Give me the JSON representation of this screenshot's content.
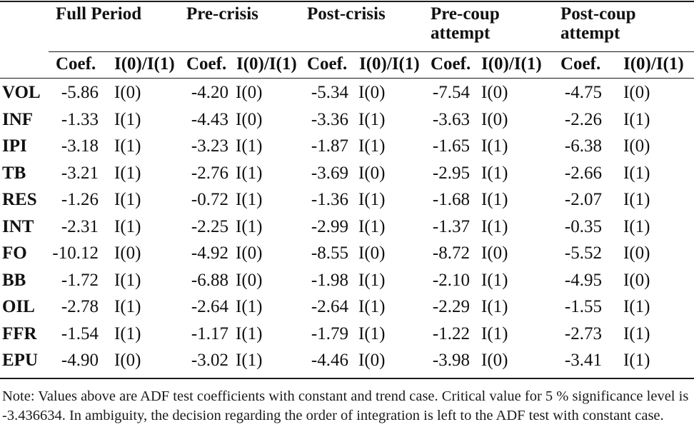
{
  "table": {
    "groups": [
      "Full Period",
      "Pre-crisis",
      "Post-crisis",
      "Pre-coup\nattempt",
      "Post-coup\nattempt"
    ],
    "sub_headers": [
      "Coef.",
      "I(0)/I(1)"
    ],
    "rows": [
      {
        "var": "VOL",
        "vals": [
          [
            "-5.86",
            "I(0)"
          ],
          [
            "-4.20",
            "I(0)"
          ],
          [
            "-5.34",
            "I(0)"
          ],
          [
            "-7.54",
            "I(0)"
          ],
          [
            "-4.75",
            "I(0)"
          ]
        ]
      },
      {
        "var": "INF",
        "vals": [
          [
            "-1.33",
            "I(1)"
          ],
          [
            "-4.43",
            "I(0)"
          ],
          [
            "-3.36",
            "I(1)"
          ],
          [
            "-3.63",
            "I(0)"
          ],
          [
            "-2.26",
            "I(1)"
          ]
        ]
      },
      {
        "var": "IPI",
        "vals": [
          [
            "-3.18",
            "I(1)"
          ],
          [
            "-3.23",
            "I(1)"
          ],
          [
            "-1.87",
            "I(1)"
          ],
          [
            "-1.65",
            "I(1)"
          ],
          [
            "-6.38",
            "I(0)"
          ]
        ]
      },
      {
        "var": "TB",
        "vals": [
          [
            "-3.21",
            "I(1)"
          ],
          [
            "-2.76",
            "I(1)"
          ],
          [
            "-3.69",
            "I(0)"
          ],
          [
            "-2.95",
            "I(1)"
          ],
          [
            "-2.66",
            "I(1)"
          ]
        ]
      },
      {
        "var": "RES",
        "vals": [
          [
            "-1.26",
            "I(1)"
          ],
          [
            "-0.72",
            "I(1)"
          ],
          [
            "-1.36",
            "I(1)"
          ],
          [
            "-1.68",
            "I(1)"
          ],
          [
            "-2.07",
            "I(1)"
          ]
        ]
      },
      {
        "var": "INT",
        "vals": [
          [
            "-2.31",
            "I(1)"
          ],
          [
            "-2.25",
            "I(1)"
          ],
          [
            "-2.99",
            "I(1)"
          ],
          [
            "-1.37",
            "I(1)"
          ],
          [
            "-0.35",
            "I(1)"
          ]
        ]
      },
      {
        "var": "FO",
        "vals": [
          [
            "-10.12",
            "I(0)"
          ],
          [
            "-4.92",
            "I(0)"
          ],
          [
            "-8.55",
            "I(0)"
          ],
          [
            "-8.72",
            "I(0)"
          ],
          [
            "-5.52",
            "I(0)"
          ]
        ]
      },
      {
        "var": "BB",
        "vals": [
          [
            "-1.72",
            "I(1)"
          ],
          [
            "-6.88",
            "I(0)"
          ],
          [
            "-1.98",
            "I(1)"
          ],
          [
            "-2.10",
            "I(1)"
          ],
          [
            "-4.95",
            "I(0)"
          ]
        ]
      },
      {
        "var": "OIL",
        "vals": [
          [
            "-2.78",
            "I(1)"
          ],
          [
            "-2.64",
            "I(1)"
          ],
          [
            "-2.64",
            "I(1)"
          ],
          [
            "-2.29",
            "I(1)"
          ],
          [
            "-1.55",
            "I(1)"
          ]
        ]
      },
      {
        "var": "FFR",
        "vals": [
          [
            "-1.54",
            "I(1)"
          ],
          [
            "-1.17",
            "I(1)"
          ],
          [
            "-1.79",
            "I(1)"
          ],
          [
            "-1.22",
            "I(1)"
          ],
          [
            "-2.73",
            "I(1)"
          ]
        ]
      },
      {
        "var": "EPU",
        "vals": [
          [
            "-4.90",
            "I(0)"
          ],
          [
            "-3.02",
            "I(1)"
          ],
          [
            "-4.46",
            "I(0)"
          ],
          [
            "-3.98",
            "I(0)"
          ],
          [
            "-3.41",
            "I(1)"
          ]
        ]
      }
    ]
  },
  "note": "Note: Values above are ADF test coefficients with constant and trend case. Critical value for 5 % significance level is -3.436634. In ambiguity, the decision regarding the order of integration is left to the ADF test with constant case."
}
